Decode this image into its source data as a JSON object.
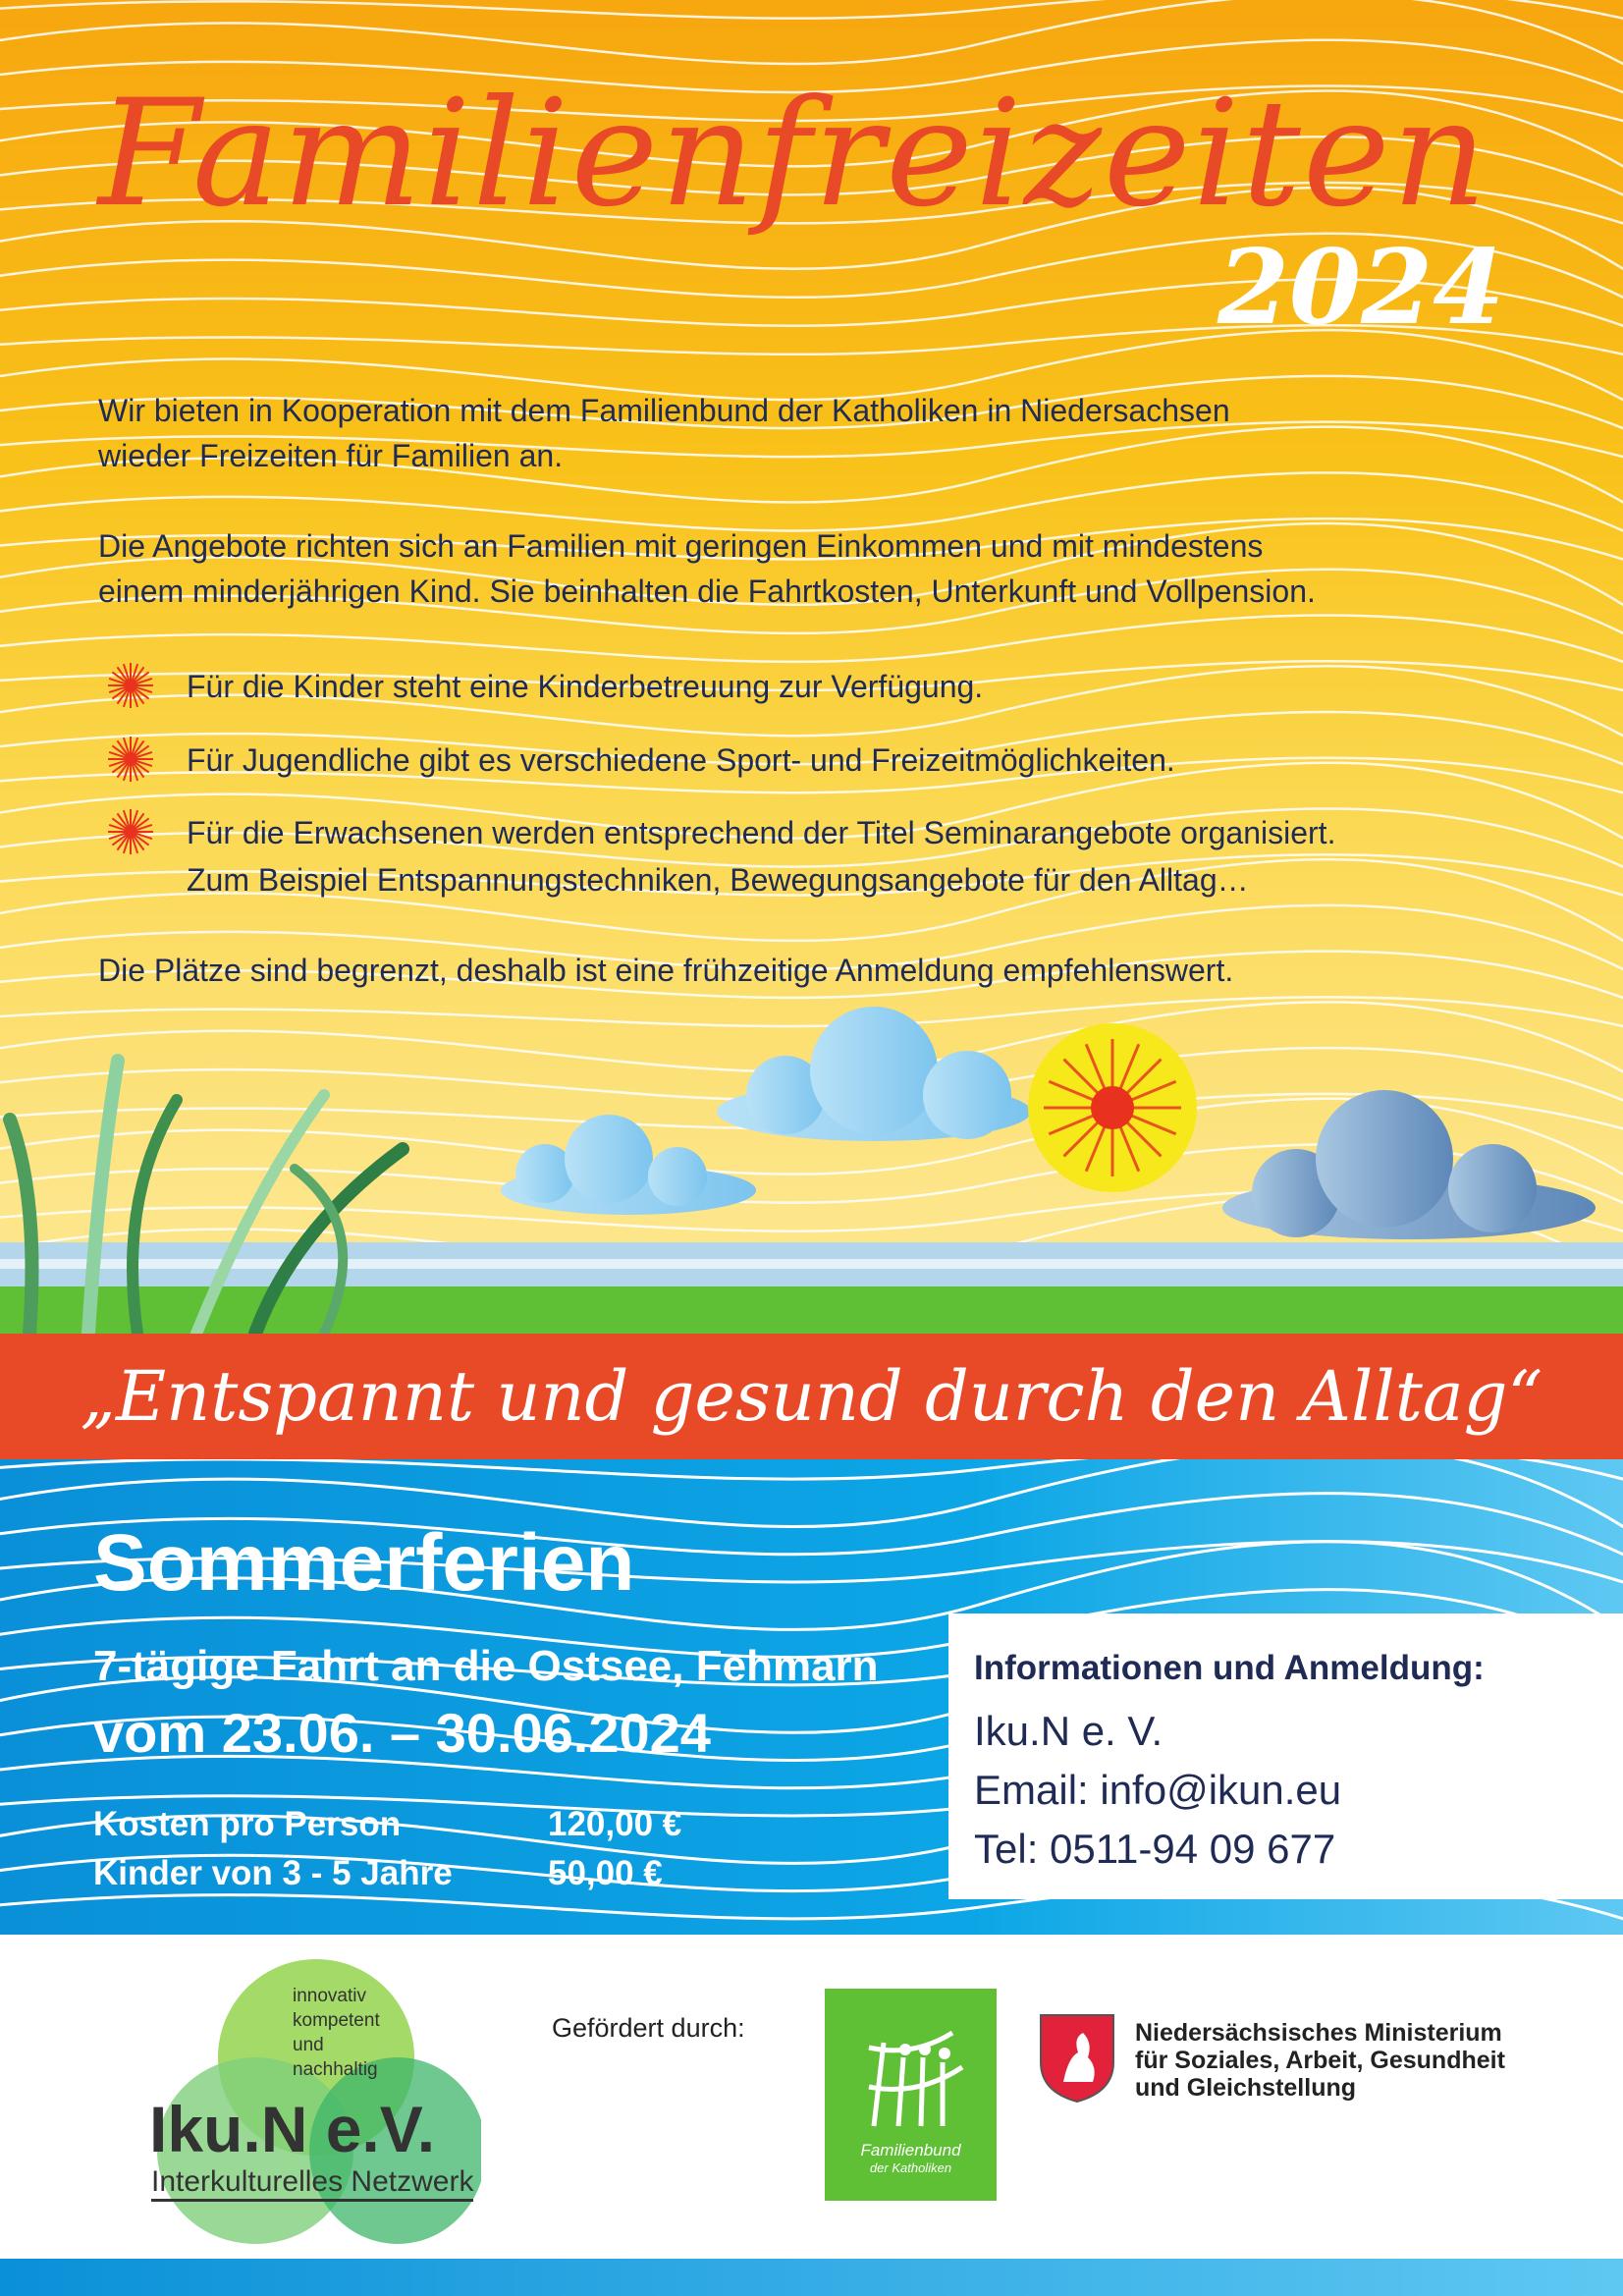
{
  "header": {
    "title": "Familienfreizeiten",
    "year": "2024"
  },
  "intro": {
    "p1": [
      "Wir bieten in Kooperation mit dem Familienbund der Katholiken in Niedersachsen",
      "wieder Freizeiten für Familien an."
    ],
    "p2": [
      "Die Angebote richten sich an Familien mit geringen Einkommen und mit mindestens",
      "einem minderjährigen Kind. Sie beinhalten die Fahrtkosten, Unterkunft und Vollpension."
    ],
    "bullets": [
      [
        "Für die Kinder steht eine Kinderbetreuung zur Verfügung."
      ],
      [
        "Für Jugendliche gibt es verschiedene Sport- und Freizeitmöglichkeiten."
      ],
      [
        "Für die Erwachsenen werden entsprechend der Titel Seminarangebote organisiert.",
        "Zum Beispiel Entspannungstechniken, Bewegungsangebote für den Alltag…"
      ]
    ],
    "p3": "Die Plätze sind begrenzt, deshalb ist eine frühzeitige Anmeldung empfehlenswert."
  },
  "banner": "„Entspannt und gesund durch den Alltag“",
  "trip": {
    "season": "Sommerferien",
    "description": "7-tägige Fahrt an die Ostsee, Fehmarn",
    "dates": "vom 23.06. – 30.06.2024",
    "costs": [
      {
        "label": "Kosten pro Person",
        "value": "120,00 €"
      },
      {
        "label": "Kinder von 3 - 5 Jahre",
        "value": "50,00 €"
      }
    ]
  },
  "contact": {
    "heading": "Informationen und Anmeldung:",
    "org": "Iku.N e. V.",
    "email": "Email: info@ikun.eu",
    "phone": "Tel: 0511-94 09 677"
  },
  "footer": {
    "iku_logo": {
      "tagline": [
        "innovativ",
        "kompetent",
        "und",
        "nachhaltig"
      ],
      "name": "Iku.N e.V.",
      "subtitle": "Interkulturelles Netzwerk"
    },
    "funded_by": "Gefördert durch:",
    "familienbund_logo": [
      "Familienbund",
      "der Katholiken"
    ],
    "ministry": [
      "Niedersächsisches Ministerium",
      "für Soziales, Arbeit, Gesundheit",
      "und Gleichstellung"
    ]
  },
  "colors": {
    "title_red": "#e84a27",
    "text_navy": "#1f2a55",
    "blue": "#0ca6e6",
    "green": "#5fbf35"
  }
}
